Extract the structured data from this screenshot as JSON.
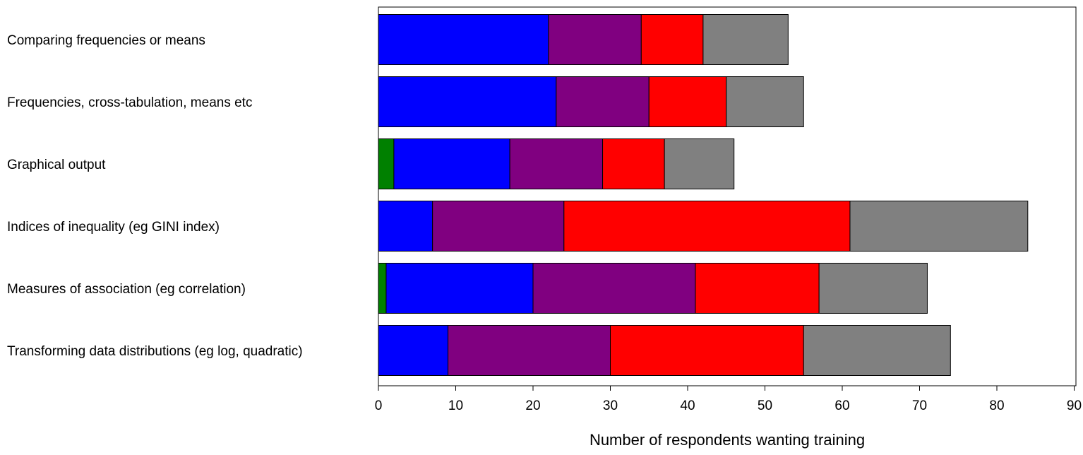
{
  "chart_data": {
    "type": "bar",
    "orientation": "horizontal",
    "stacked": true,
    "categories": [
      "Comparing frequencies or means",
      "Frequencies, cross-tabulation, means etc",
      "Graphical output",
      "Indices of inequality (eg GINI index)",
      "Measures of association (eg correlation)",
      "Transforming data distributions (eg log, quadratic)"
    ],
    "series": [
      {
        "color": "#008000",
        "values": [
          0,
          0,
          2,
          0,
          1,
          0
        ]
      },
      {
        "color": "#0000ff",
        "values": [
          22,
          23,
          15,
          7,
          19,
          9
        ]
      },
      {
        "color": "#800080",
        "values": [
          12,
          12,
          12,
          17,
          21,
          21
        ]
      },
      {
        "color": "#ff0000",
        "values": [
          8,
          10,
          8,
          37,
          16,
          25
        ]
      },
      {
        "color": "#808080",
        "values": [
          11,
          10,
          9,
          23,
          14,
          19
        ]
      }
    ],
    "x_ticks": [
      "0",
      "10",
      "20",
      "30",
      "40",
      "50",
      "60",
      "70",
      "80",
      "90"
    ],
    "xlim": [
      0,
      90
    ],
    "xlabel": "Number of respondents wanting training",
    "ylabel": "",
    "title": "",
    "grid": false,
    "legend": "none"
  }
}
